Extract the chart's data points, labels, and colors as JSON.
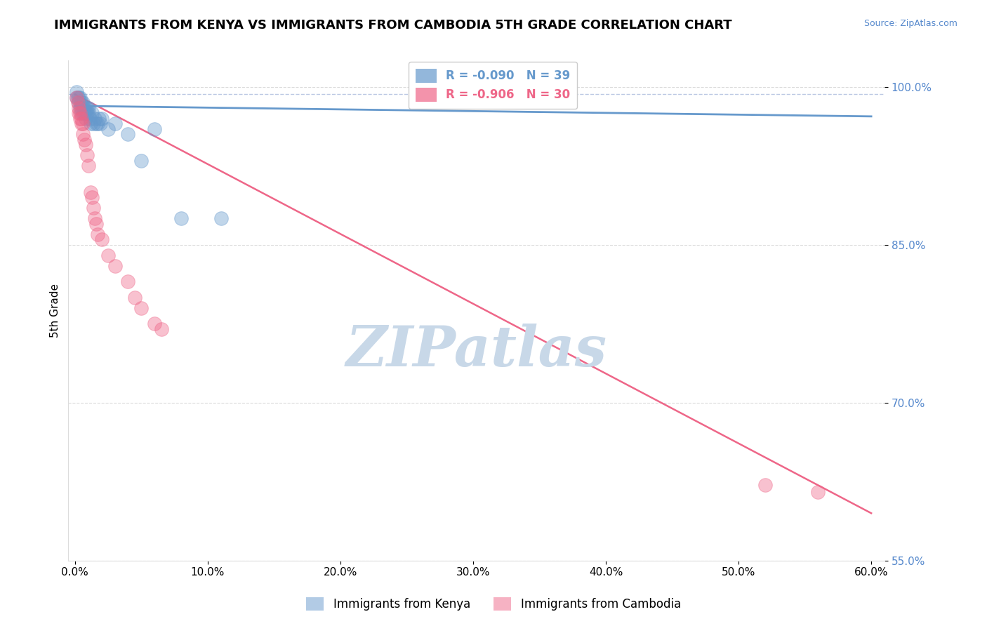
{
  "title": "IMMIGRANTS FROM KENYA VS IMMIGRANTS FROM CAMBODIA 5TH GRADE CORRELATION CHART",
  "source_text": "Source: ZipAtlas.com",
  "ylabel": "5th Grade",
  "kenya_color": "#6699cc",
  "cambodia_color": "#ee6688",
  "kenya_R": -0.09,
  "kenya_N": 39,
  "cambodia_R": -0.906,
  "cambodia_N": 30,
  "kenya_scatter_x": [
    0.001,
    0.001,
    0.002,
    0.003,
    0.003,
    0.004,
    0.004,
    0.005,
    0.005,
    0.005,
    0.006,
    0.006,
    0.006,
    0.007,
    0.007,
    0.008,
    0.008,
    0.008,
    0.009,
    0.009,
    0.01,
    0.01,
    0.011,
    0.012,
    0.013,
    0.014,
    0.015,
    0.016,
    0.017,
    0.018,
    0.019,
    0.02,
    0.025,
    0.03,
    0.04,
    0.05,
    0.06,
    0.08,
    0.11
  ],
  "kenya_scatter_y": [
    0.99,
    0.995,
    0.99,
    0.985,
    0.99,
    0.98,
    0.99,
    0.975,
    0.98,
    0.985,
    0.975,
    0.98,
    0.985,
    0.975,
    0.98,
    0.97,
    0.975,
    0.98,
    0.975,
    0.98,
    0.975,
    0.98,
    0.97,
    0.965,
    0.975,
    0.965,
    0.97,
    0.965,
    0.965,
    0.97,
    0.965,
    0.97,
    0.96,
    0.965,
    0.955,
    0.93,
    0.96,
    0.875,
    0.875
  ],
  "cambodia_scatter_x": [
    0.001,
    0.002,
    0.003,
    0.003,
    0.004,
    0.004,
    0.005,
    0.005,
    0.006,
    0.006,
    0.007,
    0.008,
    0.009,
    0.01,
    0.012,
    0.013,
    0.014,
    0.015,
    0.016,
    0.017,
    0.02,
    0.025,
    0.03,
    0.04,
    0.045,
    0.05,
    0.06,
    0.065,
    0.52,
    0.56
  ],
  "cambodia_scatter_y": [
    0.99,
    0.985,
    0.975,
    0.98,
    0.97,
    0.975,
    0.965,
    0.97,
    0.955,
    0.965,
    0.95,
    0.945,
    0.935,
    0.925,
    0.9,
    0.895,
    0.885,
    0.875,
    0.87,
    0.86,
    0.855,
    0.84,
    0.83,
    0.815,
    0.8,
    0.79,
    0.775,
    0.77,
    0.622,
    0.615
  ],
  "kenya_trend_x": [
    0.0,
    0.6
  ],
  "kenya_trend_y": [
    0.982,
    0.972
  ],
  "cambodia_trend_x": [
    0.0,
    0.6
  ],
  "cambodia_trend_y": [
    0.993,
    0.595
  ],
  "dashed_line_y": 0.993,
  "ylim": [
    0.575,
    1.025
  ],
  "xlim": [
    -0.005,
    0.61
  ],
  "xtick_vals": [
    0.0,
    0.1,
    0.2,
    0.3,
    0.4,
    0.5,
    0.6
  ],
  "ytick_positions": [
    0.55,
    0.7,
    0.85,
    1.0
  ],
  "background_color": "#ffffff",
  "grid_color": "#cccccc",
  "watermark_text": "ZIPatlas",
  "watermark_color": "#c8d8e8",
  "title_fontsize": 13,
  "tick_fontsize": 11,
  "label_fontsize": 11
}
